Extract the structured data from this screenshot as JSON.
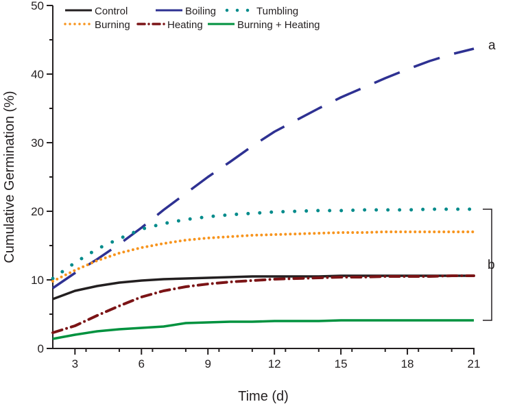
{
  "chart_data": {
    "type": "line",
    "title": "",
    "xlabel": "Time (d)",
    "ylabel": "Cumulative Germination (%)",
    "xlim": [
      2,
      21
    ],
    "ylim": [
      0,
      50
    ],
    "xticks": [
      3,
      6,
      9,
      12,
      15,
      18,
      21
    ],
    "yticks": [
      0,
      10,
      20,
      30,
      40,
      50
    ],
    "grid": false,
    "legend_position": "top-left",
    "x": [
      2,
      3,
      4,
      5,
      6,
      7,
      8,
      9,
      10,
      11,
      12,
      13,
      14,
      15,
      16,
      17,
      18,
      19,
      20,
      21
    ],
    "series": [
      {
        "name": "Control",
        "color": "#231f20",
        "style": "solid",
        "values": [
          7.2,
          8.4,
          9.1,
          9.6,
          9.9,
          10.1,
          10.2,
          10.3,
          10.4,
          10.5,
          10.5,
          10.5,
          10.5,
          10.6,
          10.6,
          10.6,
          10.6,
          10.6,
          10.6,
          10.6
        ]
      },
      {
        "name": "Boiling",
        "color": "#2e3192",
        "style": "long-dash",
        "values": [
          8.8,
          11.0,
          13.0,
          15.2,
          17.6,
          20.2,
          22.6,
          25.0,
          27.2,
          29.5,
          31.6,
          33.3,
          35.0,
          36.6,
          38.0,
          39.4,
          40.7,
          41.9,
          42.9,
          43.7
        ]
      },
      {
        "name": "Tumbling",
        "color": "#008b8b",
        "style": "dot-sparse",
        "values": [
          10.2,
          12.5,
          14.5,
          16.0,
          17.4,
          18.2,
          18.8,
          19.2,
          19.5,
          19.7,
          19.9,
          20.0,
          20.1,
          20.1,
          20.2,
          20.2,
          20.2,
          20.3,
          20.3,
          20.3
        ]
      },
      {
        "name": "Burning",
        "color": "#f7941d",
        "style": "dot",
        "values": [
          9.8,
          11.4,
          12.8,
          13.9,
          14.7,
          15.3,
          15.8,
          16.1,
          16.3,
          16.5,
          16.6,
          16.7,
          16.8,
          16.9,
          16.9,
          17.0,
          17.0,
          17.0,
          17.0,
          17.0
        ]
      },
      {
        "name": "Heating",
        "color": "#7b1416",
        "style": "dash-dot",
        "values": [
          2.3,
          3.3,
          4.8,
          6.2,
          7.5,
          8.4,
          9.0,
          9.4,
          9.7,
          9.9,
          10.1,
          10.2,
          10.3,
          10.4,
          10.4,
          10.5,
          10.5,
          10.5,
          10.6,
          10.6
        ]
      },
      {
        "name": "Burning + Heating",
        "color": "#00923f",
        "style": "solid",
        "values": [
          1.4,
          2.0,
          2.5,
          2.8,
          3.0,
          3.2,
          3.7,
          3.8,
          3.9,
          3.9,
          4.0,
          4.0,
          4.0,
          4.1,
          4.1,
          4.1,
          4.1,
          4.1,
          4.1,
          4.1
        ]
      }
    ],
    "annotations": [
      {
        "text": "a",
        "refers_to": [
          "Boiling"
        ]
      },
      {
        "text": "b",
        "refers_to": [
          "Control",
          "Tumbling",
          "Burning",
          "Heating",
          "Burning + Heating"
        ],
        "bracket_range": [
          20.3,
          4.1
        ]
      }
    ]
  }
}
